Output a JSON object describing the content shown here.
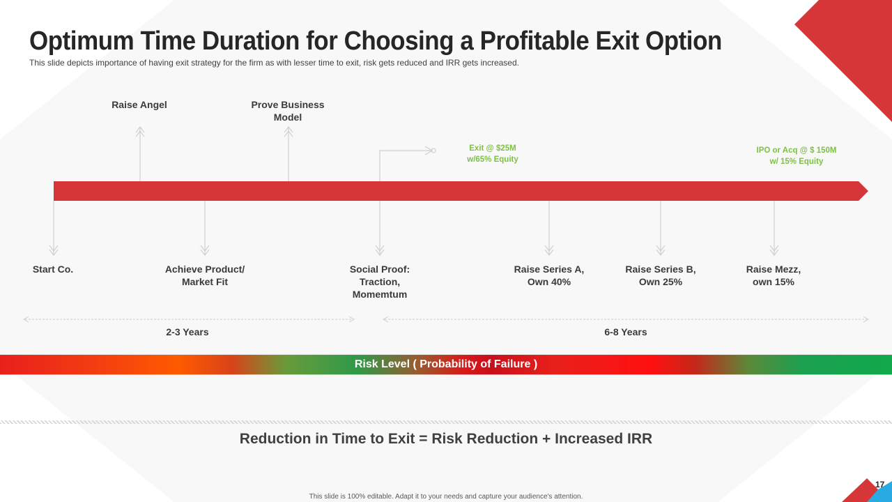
{
  "title": "Optimum Time Duration for Choosing a Profitable Exit Option",
  "subtitle": "This slide depicts importance of having exit strategy for the firm as with lesser time to exit, risk gets reduced and IRR gets increased.",
  "timeline": {
    "upper_milestones": [
      {
        "label": "Raise Angel"
      },
      {
        "label": "Prove Business Model"
      }
    ],
    "exits": [
      {
        "label": "Exit @ $25M w/65% Equity"
      },
      {
        "label": "IPO or Acq @ $ 150M w/ 15% Equity"
      }
    ],
    "lower_milestones": [
      {
        "label": "Start Co."
      },
      {
        "label": "Achieve Product/ Market Fit"
      },
      {
        "label": "Social Proof: Traction, Momemtum"
      },
      {
        "label": "Raise Series A, Own 40%"
      },
      {
        "label": "Raise Series B, Own 25%"
      },
      {
        "label": "Raise Mezz, own 15%"
      }
    ],
    "periods": [
      {
        "label": "2-3 Years"
      },
      {
        "label": "6-8 Years"
      }
    ]
  },
  "risk_bar_label": "Risk Level ( Probability of Failure )",
  "summary": "Reduction in Time to Exit = Risk Reduction + Increased IRR",
  "footer": "This slide is 100% editable. Adapt it to your needs and capture your audience's attention.",
  "page_number": "17",
  "colors": {
    "accent_red": "#d63638",
    "exit_green": "#7dc241",
    "accent_blue": "#29abe2"
  }
}
